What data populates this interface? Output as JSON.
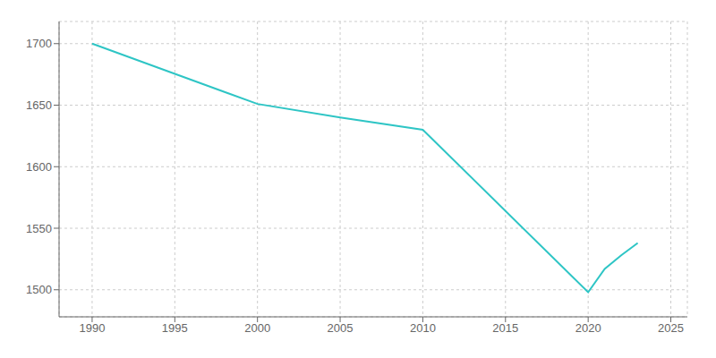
{
  "chart_data": {
    "type": "line",
    "x": [
      1990,
      2000,
      2005,
      2010,
      2020,
      2021,
      2022,
      2023
    ],
    "values": [
      1700,
      1651,
      1640,
      1630,
      1498,
      1517,
      1528,
      1538
    ],
    "color": "#2ec5c5",
    "xlim": [
      1988,
      2026
    ],
    "ylim": [
      1478,
      1718
    ],
    "xticks": [
      1990,
      1995,
      2000,
      2005,
      2010,
      2015,
      2020,
      2025
    ],
    "yticks": [
      1500,
      1550,
      1600,
      1650,
      1700
    ],
    "grid": true
  }
}
